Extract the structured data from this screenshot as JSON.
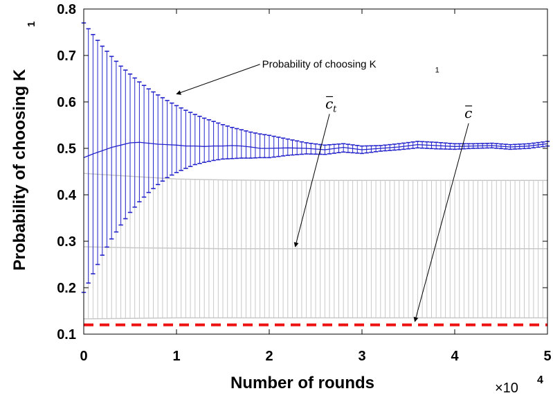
{
  "chart_data": {
    "type": "line",
    "xlabel": "Number of rounds",
    "ylabel": "Probability of choosing K",
    "ylabel_subscript": "1",
    "x_multiplier": {
      "base": "×10",
      "exponent": "4"
    },
    "xlim": [
      0,
      5
    ],
    "ylim": [
      0.1,
      0.8
    ],
    "xticks": [
      "0",
      "1",
      "2",
      "3",
      "4",
      "5"
    ],
    "yticks": [
      "0.1",
      "0.2",
      "0.3",
      "0.4",
      "0.5",
      "0.6",
      "0.7",
      "0.8"
    ],
    "grid": false,
    "legend": "none",
    "series": [
      {
        "id": "k1",
        "color": "#2222cc",
        "style": "solid-errorbar",
        "x": [
          0.0,
          0.1,
          0.2,
          0.3,
          0.4,
          0.5,
          0.6,
          0.7,
          0.8,
          0.9,
          1.0,
          1.1,
          1.2,
          1.3,
          1.4,
          1.5,
          1.6,
          1.7,
          1.8,
          1.9,
          2.0,
          2.2,
          2.4,
          2.6,
          2.8,
          3.0,
          3.2,
          3.4,
          3.6,
          3.8,
          4.0,
          4.2,
          4.4,
          4.6,
          4.8,
          5.0
        ],
        "y": [
          0.48,
          0.488,
          0.495,
          0.502,
          0.507,
          0.512,
          0.513,
          0.511,
          0.509,
          0.508,
          0.507,
          0.505,
          0.505,
          0.504,
          0.505,
          0.505,
          0.506,
          0.505,
          0.503,
          0.5,
          0.5,
          0.501,
          0.5,
          0.497,
          0.502,
          0.497,
          0.5,
          0.503,
          0.508,
          0.506,
          0.504,
          0.505,
          0.506,
          0.503,
          0.505,
          0.51
        ],
        "lower": [
          0.19,
          0.23,
          0.27,
          0.305,
          0.335,
          0.362,
          0.385,
          0.405,
          0.422,
          0.437,
          0.448,
          0.457,
          0.465,
          0.47,
          0.474,
          0.477,
          0.478,
          0.479,
          0.479,
          0.48,
          0.48,
          0.485,
          0.488,
          0.487,
          0.492,
          0.489,
          0.494,
          0.497,
          0.501,
          0.499,
          0.498,
          0.5,
          0.501,
          0.498,
          0.5,
          0.505
        ],
        "upper": [
          0.77,
          0.745,
          0.72,
          0.698,
          0.677,
          0.66,
          0.643,
          0.628,
          0.615,
          0.603,
          0.592,
          0.582,
          0.573,
          0.565,
          0.558,
          0.551,
          0.545,
          0.54,
          0.535,
          0.531,
          0.528,
          0.52,
          0.512,
          0.507,
          0.51,
          0.505,
          0.506,
          0.51,
          0.515,
          0.513,
          0.51,
          0.51,
          0.511,
          0.508,
          0.51,
          0.515
        ]
      },
      {
        "id": "c_t",
        "color": "#c8c8c8",
        "style": "solid-errorbar",
        "x": [
          0,
          0.5,
          1,
          1.5,
          2,
          2.5,
          3,
          3.5,
          4,
          4.5,
          5
        ],
        "y": [
          0.288,
          0.286,
          0.285,
          0.284,
          0.284,
          0.284,
          0.284,
          0.284,
          0.284,
          0.284,
          0.284
        ],
        "lower": [
          0.133,
          0.134,
          0.135,
          0.135,
          0.135,
          0.135,
          0.135,
          0.135,
          0.135,
          0.135,
          0.135
        ],
        "upper": [
          0.446,
          0.44,
          0.434,
          0.432,
          0.431,
          0.431,
          0.431,
          0.431,
          0.431,
          0.431,
          0.431
        ]
      },
      {
        "id": "c_bar",
        "color": "#ee1111",
        "style": "dashed",
        "x": [
          0,
          5
        ],
        "y": [
          0.12,
          0.12
        ]
      }
    ],
    "annotations": [
      {
        "id": "ann-k1",
        "text": "Probability of choosing K",
        "subscript": "1",
        "from": [
          1.9,
          0.681
        ],
        "to": [
          1.0,
          0.617
        ]
      },
      {
        "id": "ann-ct",
        "text": "c",
        "subscript": "t",
        "from": [
          2.65,
          0.574
        ],
        "to": [
          2.28,
          0.288
        ]
      },
      {
        "id": "ann-cbar",
        "text": "c",
        "subscript": "",
        "from": [
          4.15,
          0.554
        ],
        "to": [
          3.57,
          0.127
        ]
      }
    ]
  }
}
